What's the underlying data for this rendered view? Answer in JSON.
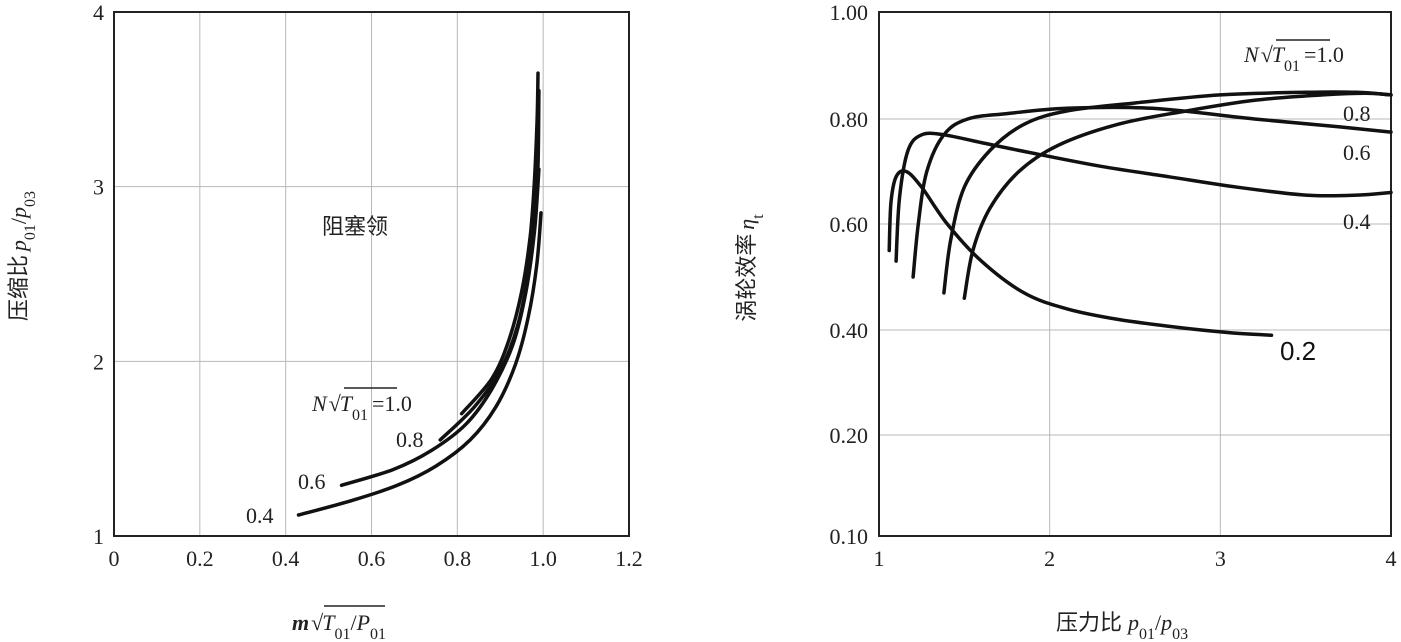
{
  "chart_data": [
    {
      "type": "line",
      "xlabel": "m√T01/P01",
      "ylabel": "压缩比 p01/p03",
      "xlim": [
        0,
        1.2
      ],
      "ylim": [
        1,
        4
      ],
      "x_ticks": [
        "0",
        "0.2",
        "0.4",
        "0.6",
        "0.8",
        "1.0",
        "1.2"
      ],
      "y_ticks": [
        "1",
        "2",
        "3",
        "4"
      ],
      "grid": true,
      "annotations": [
        {
          "text": "阻塞领",
          "x": 0.67,
          "y": 3.2
        },
        {
          "text": "N√T01 =1.0",
          "x": 0.58,
          "y": 1.77
        }
      ],
      "series": [
        {
          "name": "1.0",
          "x": [
            0.81,
            0.88,
            0.92,
            0.95,
            0.97,
            0.98,
            0.986,
            0.988
          ],
          "y": [
            1.7,
            1.9,
            2.12,
            2.4,
            2.72,
            3.05,
            3.4,
            3.65
          ]
        },
        {
          "name": "0.8",
          "x": [
            0.76,
            0.84,
            0.9,
            0.94,
            0.965,
            0.98,
            0.988,
            0.99
          ],
          "y": [
            1.55,
            1.74,
            1.95,
            2.2,
            2.5,
            2.8,
            3.12,
            3.55
          ]
        },
        {
          "name": "0.6",
          "x": [
            0.53,
            0.65,
            0.74,
            0.82,
            0.88,
            0.93,
            0.96,
            0.98,
            0.99
          ],
          "y": [
            1.29,
            1.38,
            1.49,
            1.64,
            1.84,
            2.1,
            2.4,
            2.75,
            3.1
          ]
        },
        {
          "name": "0.4",
          "x": [
            0.43,
            0.55,
            0.66,
            0.75,
            0.83,
            0.89,
            0.935,
            0.965,
            0.985,
            0.995
          ],
          "y": [
            1.12,
            1.2,
            1.29,
            1.4,
            1.55,
            1.74,
            1.98,
            2.25,
            2.55,
            2.85
          ]
        }
      ]
    },
    {
      "type": "line",
      "xlabel": "压力比 p01/p03",
      "ylabel": "涡轮效率 ηt",
      "xlim": [
        1,
        4
      ],
      "y_ticks": [
        "0.10",
        "0.20",
        "0.40",
        "0.60",
        "0.80",
        "1.00"
      ],
      "x_ticks": [
        "1",
        "2",
        "3",
        "4"
      ],
      "grid": true,
      "annotations": [
        {
          "text": "N√T01 =1.0",
          "x": 3.7,
          "y": 0.92
        }
      ],
      "series": [
        {
          "name": "0.2",
          "x": [
            1.06,
            1.07,
            1.1,
            1.16,
            1.25,
            1.4,
            1.6,
            1.85,
            2.1,
            2.4,
            2.75,
            3.05,
            3.3
          ],
          "y": [
            0.55,
            0.64,
            0.69,
            0.7,
            0.67,
            0.6,
            0.53,
            0.47,
            0.44,
            0.42,
            0.405,
            0.395,
            0.39
          ]
        },
        {
          "name": "0.4",
          "x": [
            1.1,
            1.12,
            1.17,
            1.25,
            1.38,
            1.6,
            1.9,
            2.3,
            2.7,
            3.1,
            3.5,
            3.8,
            4.0
          ],
          "y": [
            0.53,
            0.65,
            0.74,
            0.77,
            0.77,
            0.755,
            0.735,
            0.71,
            0.69,
            0.67,
            0.655,
            0.655,
            0.66
          ]
        },
        {
          "name": "0.6",
          "x": [
            1.2,
            1.23,
            1.28,
            1.38,
            1.52,
            1.75,
            2.1,
            2.6,
            3.2,
            3.7,
            4.0
          ],
          "y": [
            0.5,
            0.6,
            0.7,
            0.77,
            0.8,
            0.81,
            0.82,
            0.82,
            0.8,
            0.785,
            0.775
          ]
        },
        {
          "name": "0.8",
          "x": [
            1.38,
            1.42,
            1.5,
            1.65,
            1.85,
            2.1,
            2.5,
            3.0,
            3.5,
            3.8,
            4.0
          ],
          "y": [
            0.47,
            0.57,
            0.67,
            0.74,
            0.79,
            0.815,
            0.83,
            0.845,
            0.85,
            0.85,
            0.845
          ]
        },
        {
          "name": "1.0",
          "x": [
            1.5,
            1.55,
            1.65,
            1.82,
            2.05,
            2.4,
            2.8,
            3.2,
            3.6,
            3.85,
            4.0
          ],
          "y": [
            0.46,
            0.55,
            0.63,
            0.7,
            0.75,
            0.79,
            0.815,
            0.835,
            0.845,
            0.848,
            0.845
          ]
        }
      ]
    }
  ]
}
